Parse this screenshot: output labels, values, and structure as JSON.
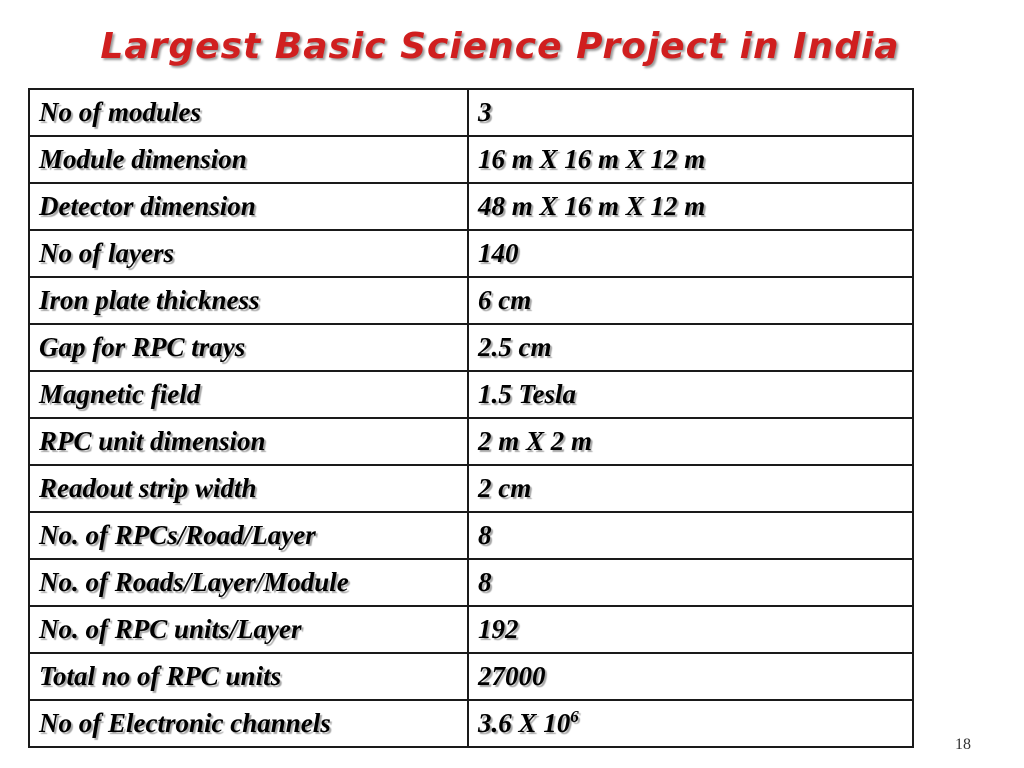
{
  "slide": {
    "title": "Largest Basic Science Project in India",
    "page_number": "18"
  },
  "table": {
    "rows": [
      {
        "label": "No  of modules",
        "value": "3"
      },
      {
        "label": "Module dimension",
        "value": "16 m X 16 m X 12 m"
      },
      {
        "label": "Detector dimension",
        "value": "48 m X 16 m X 12 m"
      },
      {
        "label": "No of layers",
        "value": "140"
      },
      {
        "label": "Iron plate thickness",
        "value": "6 cm"
      },
      {
        "label": "Gap for RPC trays",
        "value": "2.5 cm"
      },
      {
        "label": "Magnetic field",
        "value": "1.5 Tesla"
      },
      {
        "label": "RPC unit dimension",
        "value": "2 m X 2 m"
      },
      {
        "label": "Readout strip width",
        "value": "2 cm"
      },
      {
        "label": "No. of RPCs/Road/Layer",
        "value": "8"
      },
      {
        "label": "No. of Roads/Layer/Module",
        "value": "8"
      },
      {
        "label": "No. of RPC units/Layer",
        "value": "192"
      },
      {
        "label": "Total no of RPC units",
        "value": "27000"
      },
      {
        "label": "No of Electronic channels",
        "value": "3.6 X 10",
        "value_sup": "6"
      }
    ]
  }
}
